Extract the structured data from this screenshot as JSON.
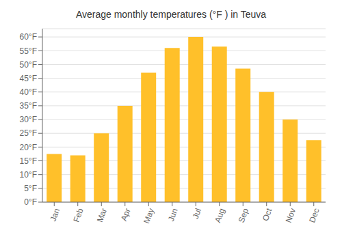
{
  "chart_data": {
    "type": "bar",
    "title": "Average monthly temperatures (°F ) in Teuva",
    "categories": [
      "Jan",
      "Feb",
      "Mar",
      "Apr",
      "May",
      "Jun",
      "Jul",
      "Aug",
      "Sep",
      "Oct",
      "Nov",
      "Dec"
    ],
    "values": [
      17.5,
      17.0,
      25.0,
      35.0,
      47.0,
      56.0,
      60.0,
      56.5,
      48.5,
      40.0,
      30.0,
      22.5
    ],
    "color": "#FFC02A",
    "ylim": [
      0,
      63
    ],
    "yticks": [
      {
        "value": 0,
        "label": "0°F"
      },
      {
        "value": 5,
        "label": "5°F"
      },
      {
        "value": 10,
        "label": "10°F"
      },
      {
        "value": 15,
        "label": "15°F"
      },
      {
        "value": 20,
        "label": "20°F"
      },
      {
        "value": 25,
        "label": "25°F"
      },
      {
        "value": 30,
        "label": "30°F"
      },
      {
        "value": 35,
        "label": "35°F"
      },
      {
        "value": 40,
        "label": "40°F"
      },
      {
        "value": 45,
        "label": "45°F"
      },
      {
        "value": 50,
        "label": "50°F"
      },
      {
        "value": 55,
        "label": "55°F"
      },
      {
        "value": 60,
        "label": "60°F"
      }
    ],
    "grid": true
  }
}
